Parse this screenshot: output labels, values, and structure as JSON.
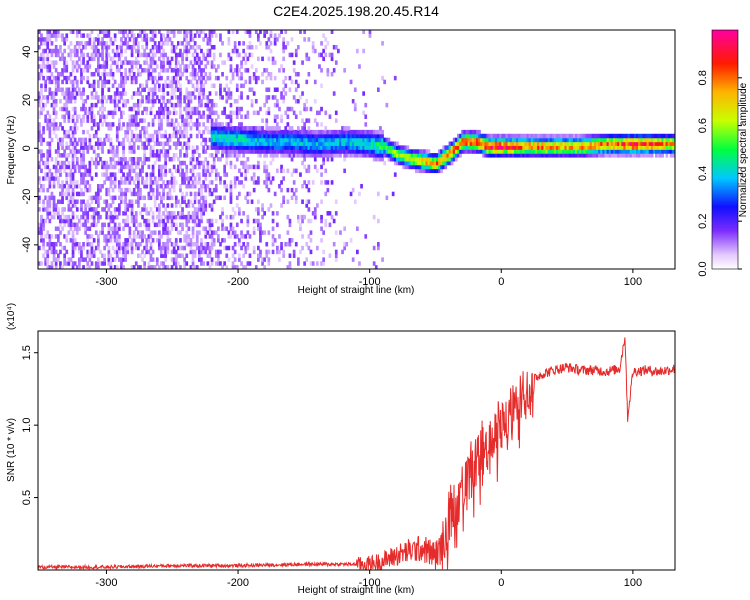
{
  "title": "C2E4.2025.198.20.45.R14",
  "chart_data": [
    {
      "type": "heatmap",
      "title": "C2E4.2025.198.20.45.R14",
      "xlabel": "Height of straight line (km)",
      "ylabel": "Frequency (Hz)",
      "xlim": [
        -352,
        132
      ],
      "ylim": [
        -50,
        49
      ],
      "xticks": [
        -300,
        -200,
        -100,
        0,
        100
      ],
      "xtick_labels": [
        "-300",
        "-200",
        "-100",
        "0",
        "100"
      ],
      "yticks": [
        -40,
        -20,
        0,
        20,
        40
      ],
      "ytick_labels": [
        "-40",
        "-20",
        "0",
        "20",
        "40"
      ],
      "colorbar": {
        "label": "Normalized spectral amplitude",
        "range": [
          0,
          1
        ],
        "ticks": [
          0.0,
          0.2,
          0.4,
          0.6,
          0.8
        ],
        "tick_labels": [
          "0.0",
          "0.2",
          "0.4",
          "0.6",
          "0.8"
        ],
        "colormap": "rainbow"
      },
      "ridge": {
        "x": [
          -220,
          -200,
          -180,
          -160,
          -140,
          -120,
          -100,
          -90,
          -80,
          -70,
          -60,
          -50,
          -40,
          -30,
          -20,
          -10,
          0,
          20,
          40,
          60,
          80,
          100,
          120,
          132
        ],
        "y": [
          4,
          3,
          2,
          2,
          1,
          2,
          1,
          0,
          -3,
          -5,
          -6,
          -7,
          -3,
          2,
          2,
          0,
          0,
          0,
          0,
          0,
          1,
          1,
          1,
          1
        ],
        "amplitude": [
          0.45,
          0.45,
          0.4,
          0.4,
          0.4,
          0.4,
          0.45,
          0.55,
          0.6,
          0.65,
          0.75,
          0.8,
          0.85,
          0.85,
          0.9,
          0.95,
          0.95,
          0.85,
          0.8,
          0.8,
          0.85,
          0.95,
          0.85,
          0.8
        ]
      }
    },
    {
      "type": "line",
      "xlabel": "Height of straight line (km)",
      "ylabel": "SNR (10 * v/v)",
      "y_scale_label": "(x10⁴)",
      "xlim": [
        -352,
        132
      ],
      "ylim": [
        0,
        1.65
      ],
      "xticks": [
        -300,
        -200,
        -100,
        0,
        100
      ],
      "xtick_labels": [
        "-300",
        "-200",
        "-100",
        "0",
        "100"
      ],
      "yticks": [
        0.5,
        1.0,
        1.5
      ],
      "ytick_labels": [
        "0.5",
        "1.0",
        "1.5"
      ],
      "line_color": "#e62b2b",
      "series": [
        {
          "x": [
            -352,
            -300,
            -250,
            -200,
            -150,
            -120,
            -100,
            -90,
            -80,
            -70,
            -60,
            -50,
            -45,
            -40,
            -35,
            -30,
            -25,
            -20,
            -15,
            -10,
            -5,
            0,
            5,
            10,
            15,
            20,
            25,
            30,
            40,
            50,
            60,
            70,
            80,
            90,
            94,
            96,
            100,
            110,
            120,
            132
          ],
          "y": [
            0.02,
            0.02,
            0.03,
            0.03,
            0.04,
            0.04,
            0.04,
            0.06,
            0.1,
            0.13,
            0.15,
            0.1,
            0.16,
            0.3,
            0.45,
            0.55,
            0.62,
            0.72,
            0.8,
            0.85,
            0.9,
            0.98,
            1.05,
            1.12,
            1.2,
            1.27,
            1.32,
            1.35,
            1.38,
            1.4,
            1.38,
            1.38,
            1.37,
            1.39,
            1.62,
            1.05,
            1.37,
            1.38,
            1.37,
            1.39
          ]
        }
      ]
    }
  ]
}
